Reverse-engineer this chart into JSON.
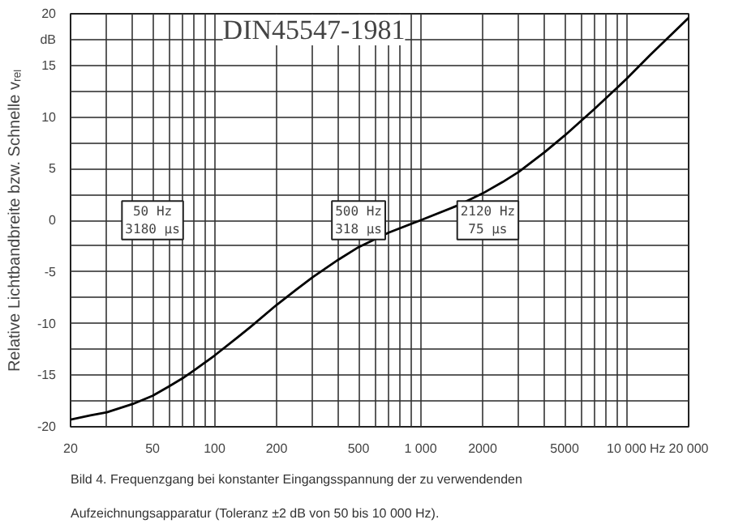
{
  "chart_data": {
    "type": "line",
    "title": "DIN45547-1981",
    "ylabel": "Relative Lichtbandbreite bzw. Schnelle vᵣₑₗ",
    "xlabel": "Hz",
    "log": "x",
    "x": [
      20,
      25,
      30,
      40,
      50,
      60,
      70,
      80,
      100,
      130,
      150,
      200,
      250,
      300,
      400,
      500,
      700,
      1000,
      1500,
      2000,
      2500,
      3000,
      4000,
      5000,
      7000,
      10000,
      13000,
      15000,
      20000
    ],
    "series": [
      {
        "color": "#000000",
        "values": [
          -19.3,
          -18.9,
          -18.6,
          -17.8,
          -17.0,
          -16.1,
          -15.3,
          -14.5,
          -13.1,
          -11.3,
          -10.3,
          -8.2,
          -6.7,
          -5.5,
          -3.8,
          -2.6,
          -1.2,
          0,
          1.4,
          2.6,
          3.7,
          4.7,
          6.6,
          8.2,
          10.8,
          13.7,
          16.0,
          17.2,
          19.6
        ]
      }
    ],
    "xlim": [
      20,
      20000
    ],
    "ylim": [
      -20,
      20
    ],
    "xticks": [
      20,
      {
        "value": 30,
        "label": null
      },
      {
        "value": 40,
        "label": null
      },
      50,
      {
        "value": 60,
        "label": null
      },
      {
        "value": 70,
        "label": null
      },
      {
        "value": 80,
        "label": null
      },
      {
        "value": 90,
        "label": null
      },
      100,
      200,
      {
        "value": 300,
        "label": null
      },
      {
        "value": 400,
        "label": null
      },
      500,
      {
        "value": 600,
        "label": null
      },
      {
        "value": 700,
        "label": null
      },
      {
        "value": 800,
        "label": null
      },
      {
        "value": 900,
        "label": null
      },
      {
        "value": 1000,
        "label": "1 000"
      },
      2000,
      {
        "value": 3000,
        "label": null
      },
      {
        "value": 4000,
        "label": null
      },
      5000,
      {
        "value": 6000,
        "label": null
      },
      {
        "value": 7000,
        "label": null
      },
      {
        "value": 8000,
        "label": null
      },
      {
        "value": 9000,
        "label": null
      },
      {
        "value": 10000,
        "label": "10 000"
      },
      {
        "value": 20000,
        "label": "20 000"
      }
    ],
    "yticks": [
      -20,
      {
        "value": -17.5,
        "label": null
      },
      -15,
      {
        "value": -12.5,
        "label": null
      },
      -10,
      {
        "value": -7.5,
        "label": null
      },
      -5,
      {
        "value": -2.5,
        "label": null
      },
      0,
      {
        "value": 2.5,
        "label": null
      },
      5,
      {
        "value": 7.5,
        "label": null
      },
      10,
      {
        "value": 12.5,
        "label": null
      },
      15,
      {
        "value": 17.5,
        "label": "dB"
      },
      20
    ],
    "grid": true,
    "marker": "none",
    "line_style": "solid",
    "annotations": [
      {
        "text": "50 Hz\n3180 µs",
        "x": 50,
        "y": 0
      },
      {
        "text": "500 Hz\n318 µs",
        "x": 500,
        "y": 0
      },
      {
        "text": "2120 Hz\n75 µs",
        "x": 2120,
        "y": 0
      },
      "Bild 4.  Frequenzgang bei konstanter Eingangsspannung der zu verwendenden Aufzeichnungsapparatur (Toleranz ±2 dB von 50 bis 10 000 Hz)."
    ]
  }
}
